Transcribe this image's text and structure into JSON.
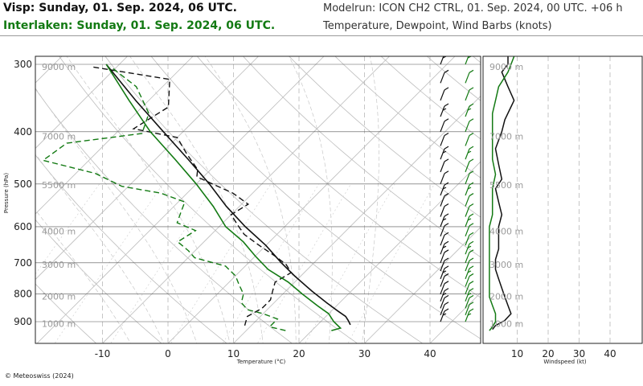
{
  "header": {
    "title1": "Visp: Sunday, 01. Sep. 2024, 06 UTC.",
    "title2": "Interlaken: Sunday, 01. Sep. 2024, 06 UTC.",
    "model_run": "Modelrun: ICON CH2 CTRL, 01. Sep. 2024, 00 UTC. +06 h",
    "parameters": "Temperature, Dewpoint, Wind Barbs (knots)"
  },
  "colors": {
    "visp": "#111111",
    "interlaken": "#137a13",
    "grid": "#b4b4b4"
  },
  "copyright": "© Meteoswiss (2024)",
  "chart_data": [
    {
      "type": "line",
      "subtype": "skew-T log-p diagram",
      "xlabel": "Temperature (°C)",
      "ylabel": "Pressure (hPa)",
      "x_ticks": [
        -10,
        0,
        10,
        20,
        30,
        40
      ],
      "x_tick_labels": [
        "-10",
        "0",
        "10",
        "20",
        "30",
        "40"
      ],
      "xlim_at_bottom": [
        -20,
        47
      ],
      "y_ticks": [
        300,
        400,
        500,
        600,
        700,
        800,
        900
      ],
      "y_tick_labels": [
        "300",
        "400",
        "500",
        "600",
        "700",
        "800",
        "900"
      ],
      "ylim": [
        1000,
        290
      ],
      "y_scale": "log",
      "height_labels": [
        "9000 m",
        "7000 m",
        "5500 m",
        "4000 m",
        "3000 m",
        "2000 m",
        "1000 m"
      ],
      "height_label_pressures": [
        303,
        408,
        502,
        612,
        705,
        808,
        907
      ],
      "series": [
        {
          "role": "temperature",
          "color": "#111111",
          "style": "solid",
          "points": [
            [
              25,
              912
            ],
            [
              24,
              895
            ],
            [
              23,
              880
            ],
            [
              21,
              860
            ],
            [
              18,
              830
            ],
            [
              14,
              790
            ],
            [
              9,
              740
            ],
            [
              5,
              700
            ],
            [
              0,
              650
            ],
            [
              -6,
              600
            ],
            [
              -12,
              550
            ],
            [
              -18,
              500
            ],
            [
              -25,
              450
            ],
            [
              -33,
              400
            ],
            [
              -42,
              350
            ],
            [
              -52,
              300
            ]
          ]
        },
        {
          "role": "dewpoint",
          "color": "#111111",
          "style": "dashed",
          "points": [
            [
              9,
              915
            ],
            [
              8,
              880
            ],
            [
              9,
              850
            ],
            [
              9,
              820
            ],
            [
              8,
              790
            ],
            [
              7,
              760
            ],
            [
              8,
              730
            ],
            [
              6,
              705
            ],
            [
              3,
              680
            ],
            [
              -1,
              650
            ],
            [
              -5,
              620
            ],
            [
              -7,
              600
            ],
            [
              -10,
              570
            ],
            [
              -9,
              545
            ],
            [
              -13,
              520
            ],
            [
              -21,
              485
            ],
            [
              -22,
              470
            ],
            [
              -26,
              440
            ],
            [
              -30,
              410
            ],
            [
              -38,
              395
            ],
            [
              -36,
              360
            ],
            [
              -40,
              320
            ],
            [
              -54,
              303
            ]
          ]
        },
        {
          "role": "temperature",
          "color": "#137a13",
          "style": "solid",
          "points": [
            [
              23,
              935
            ],
            [
              24,
              925
            ],
            [
              22,
              900
            ],
            [
              20,
              870
            ],
            [
              17,
              840
            ],
            [
              13,
              800
            ],
            [
              9,
              760
            ],
            [
              4,
              720
            ],
            [
              0,
              680
            ],
            [
              -4,
              640
            ],
            [
              -9,
              600
            ],
            [
              -14,
              550
            ],
            [
              -20,
              500
            ],
            [
              -27,
              450
            ],
            [
              -35,
              400
            ],
            [
              -43,
              350
            ],
            [
              -52,
              300
            ]
          ]
        },
        {
          "role": "dewpoint",
          "color": "#137a13",
          "style": "dashed",
          "points": [
            [
              16,
              935
            ],
            [
              13,
              920
            ],
            [
              13,
              890
            ],
            [
              10,
              870
            ],
            [
              7,
              855
            ],
            [
              5,
              830
            ],
            [
              4,
              800
            ],
            [
              2,
              770
            ],
            [
              0,
              740
            ],
            [
              -3,
              710
            ],
            [
              -9,
              685
            ],
            [
              -11,
              665
            ],
            [
              -14,
              640
            ],
            [
              -13,
              610
            ],
            [
              -17,
              590
            ],
            [
              -18,
              565
            ],
            [
              -19,
              540
            ],
            [
              -24,
              520
            ],
            [
              -31,
              505
            ],
            [
              -37,
              478
            ],
            [
              -47,
              452
            ],
            [
              -46,
              420
            ],
            [
              -36,
              403
            ],
            [
              -38,
              370
            ],
            [
              -44,
              330
            ],
            [
              -51,
              303
            ]
          ]
        }
      ]
    },
    {
      "type": "line",
      "xlabel": "Windspeed (kt)",
      "x_ticks": [
        10,
        20,
        30,
        40
      ],
      "x_tick_labels": [
        "10",
        "20",
        "30",
        "40"
      ],
      "xlim": [
        0,
        49
      ],
      "ylim": [
        1000,
        290
      ],
      "y_scale": "log",
      "height_labels": [
        "9000 m",
        "7000 m",
        "5500 m",
        "4000 m",
        "3000 m",
        "2000 m",
        "1000 m"
      ],
      "height_label_pressures": [
        303,
        408,
        502,
        612,
        705,
        808,
        907
      ],
      "series": [
        {
          "color": "#111111",
          "points": [
            [
              2,
              930
            ],
            [
              3,
              915
            ],
            [
              6,
              895
            ],
            [
              8,
              870
            ],
            [
              7,
              840
            ],
            [
              6,
              810
            ],
            [
              5,
              780
            ],
            [
              4,
              750
            ],
            [
              3,
              720
            ],
            [
              3,
              690
            ],
            [
              4,
              660
            ],
            [
              4,
              630
            ],
            [
              4,
              600
            ],
            [
              5,
              570
            ],
            [
              4,
              540
            ],
            [
              3,
              510
            ],
            [
              5,
              490
            ],
            [
              4,
              460
            ],
            [
              3,
              430
            ],
            [
              5,
              400
            ],
            [
              6,
              380
            ],
            [
              9,
              350
            ],
            [
              7,
              330
            ],
            [
              5,
              310
            ],
            [
              7,
              300
            ],
            [
              7,
              290
            ]
          ]
        },
        {
          "color": "#137a13",
          "points": [
            [
              1,
              935
            ],
            [
              2,
              920
            ],
            [
              3,
              900
            ],
            [
              3,
              870
            ],
            [
              2,
              840
            ],
            [
              1,
              810
            ],
            [
              1,
              780
            ],
            [
              1,
              750
            ],
            [
              1,
              720
            ],
            [
              1,
              690
            ],
            [
              1,
              660
            ],
            [
              1,
              630
            ],
            [
              1,
              600
            ],
            [
              2,
              570
            ],
            [
              2,
              540
            ],
            [
              2,
              510
            ],
            [
              3,
              480
            ],
            [
              2,
              450
            ],
            [
              2,
              420
            ],
            [
              2,
              390
            ],
            [
              2,
              370
            ],
            [
              3,
              350
            ],
            [
              4,
              330
            ],
            [
              7,
              310
            ],
            [
              8,
              300
            ],
            [
              9,
              290
            ]
          ]
        }
      ]
    }
  ]
}
